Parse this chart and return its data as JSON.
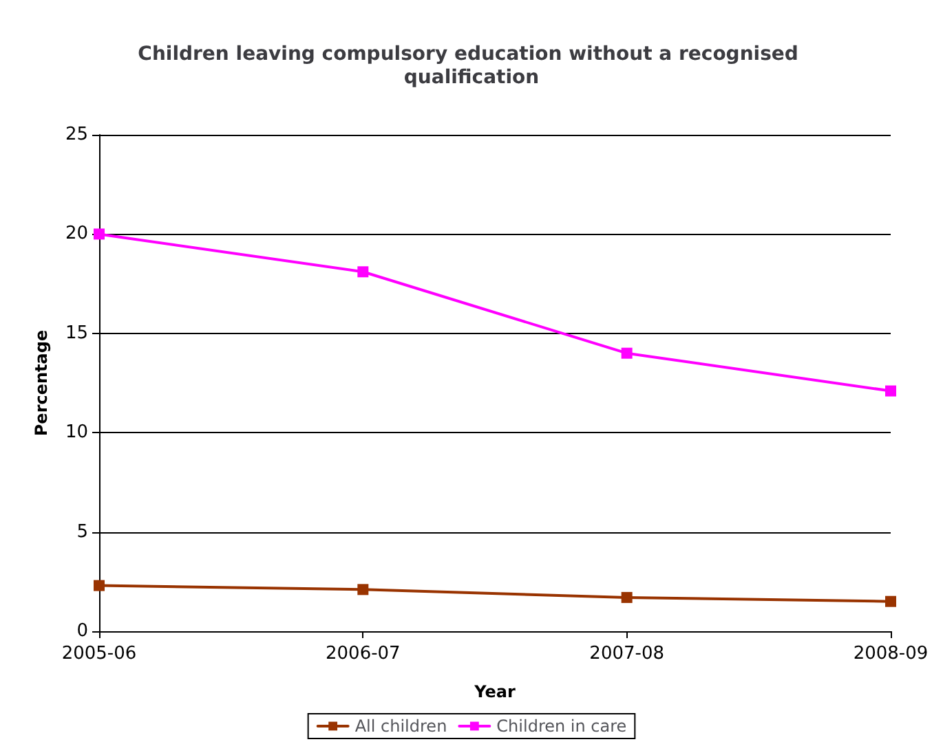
{
  "chart_data": {
    "type": "line",
    "title": "Children leaving compulsory education without a recognised qualification",
    "xlabel": "Year",
    "ylabel": "Percentage",
    "categories": [
      "2005-06",
      "2006-07",
      "2007-08",
      "2008-09"
    ],
    "series": [
      {
        "name": "All children",
        "color": "#993300",
        "values": [
          2.3,
          2.1,
          1.7,
          1.5
        ]
      },
      {
        "name": "Children in care",
        "color": "#ff00ff",
        "values": [
          20.0,
          18.1,
          14.0,
          12.1
        ]
      }
    ],
    "ylim": [
      0,
      25
    ],
    "yticks": [
      0,
      5,
      10,
      15,
      20,
      25
    ],
    "grid": "y",
    "legend": "bottom",
    "marker": "square",
    "line_style": "solid"
  }
}
